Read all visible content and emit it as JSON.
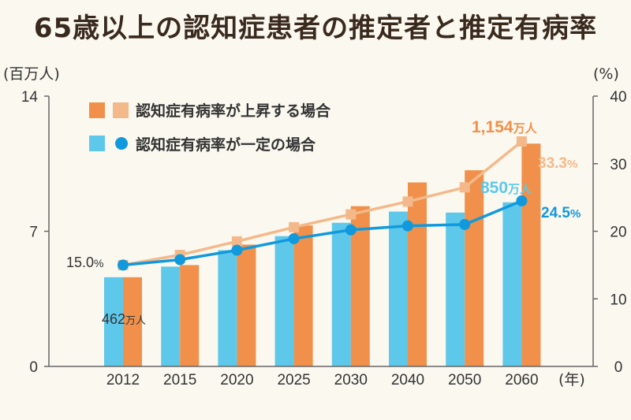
{
  "colors": {
    "rising_bar": "#f0904a",
    "rising_line": "#f4b98a",
    "constant_bar": "#5ec8ea",
    "constant_line": "#1199dd",
    "axis": "#666666"
  },
  "chart_data": {
    "type": "bar",
    "title": "65歳以上の認知症患者の推定者と推定有病率",
    "y_left_unit": "(百万人)",
    "y_right_unit": "(%)",
    "x_unit": "(年)",
    "categories": [
      "2012",
      "2015",
      "2020",
      "2025",
      "2030",
      "2040",
      "2050",
      "2060"
    ],
    "ylim_left": [
      0,
      14
    ],
    "ylim_right": [
      0,
      40
    ],
    "y_left_ticks": [
      "0",
      "7",
      "14"
    ],
    "y_right_ticks": [
      "0",
      "10",
      "20",
      "30",
      "40"
    ],
    "legend_position": "top-left",
    "series": [
      {
        "name": "認知症有病率が一定の場合",
        "kind": "bar",
        "axis": "left",
        "values": [
          4.62,
          5.17,
          6.02,
          6.75,
          7.44,
          8.02,
          7.97,
          8.5
        ]
      },
      {
        "name": "認知症有病率が上昇する場合",
        "kind": "bar",
        "axis": "left",
        "values": [
          4.62,
          5.25,
          6.31,
          7.3,
          8.3,
          9.53,
          10.16,
          11.54
        ]
      },
      {
        "name": "認知症有病率が上昇する場合",
        "kind": "line",
        "axis": "right",
        "values": [
          15.0,
          16.5,
          18.5,
          20.6,
          22.5,
          24.4,
          26.5,
          33.3
        ]
      },
      {
        "name": "認知症有病率が一定の場合",
        "kind": "line",
        "axis": "right",
        "values": [
          15.0,
          15.8,
          17.2,
          18.9,
          20.2,
          20.8,
          21.0,
          24.5
        ]
      }
    ],
    "annotations": {
      "rising_2060_num": "1,154",
      "rising_2060_unit": "万人",
      "rising_2060_rate_num": "33.3",
      "rising_2060_rate_unit": "%",
      "constant_2060_num": "850",
      "constant_2060_unit": "万人",
      "constant_2060_rate_num": "24.5",
      "constant_2060_rate_unit": "%",
      "start_rate_num": "15.0",
      "start_rate_unit": "%",
      "start_count_num": "462",
      "start_count_unit": "万人"
    }
  }
}
